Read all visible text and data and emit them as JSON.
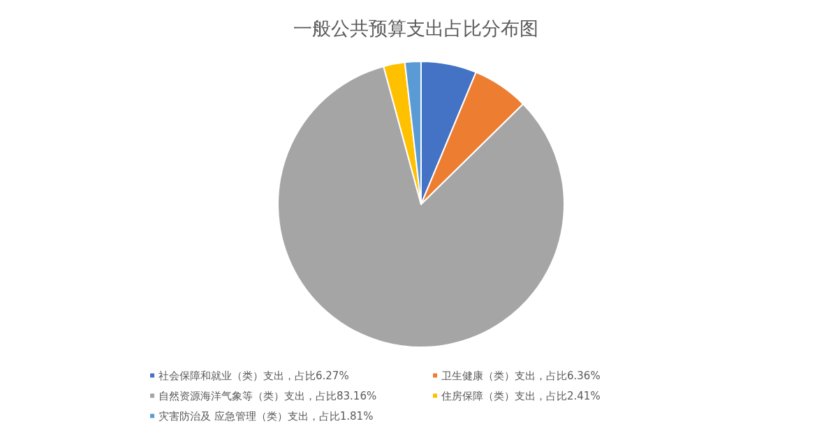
{
  "chart_data": {
    "type": "pie",
    "title": "一般公共预算支出占比分布图",
    "categories": [
      "社会保障和就业（类）支出，占比6.27%",
      "卫生健康（类）支出，占比6.36%",
      "自然资源海洋气象等（类）支出，占比83.16%",
      "住房保障（类）支出，占比2.41%",
      "灾害防治及 应急管理（类）支出，占比1.81%"
    ],
    "values": [
      6.27,
      6.36,
      83.16,
      2.41,
      1.81
    ],
    "colors": [
      "#4472c4",
      "#ed7d31",
      "#a5a5a5",
      "#ffc000",
      "#5b9bd5"
    ],
    "legend": "bottom"
  }
}
